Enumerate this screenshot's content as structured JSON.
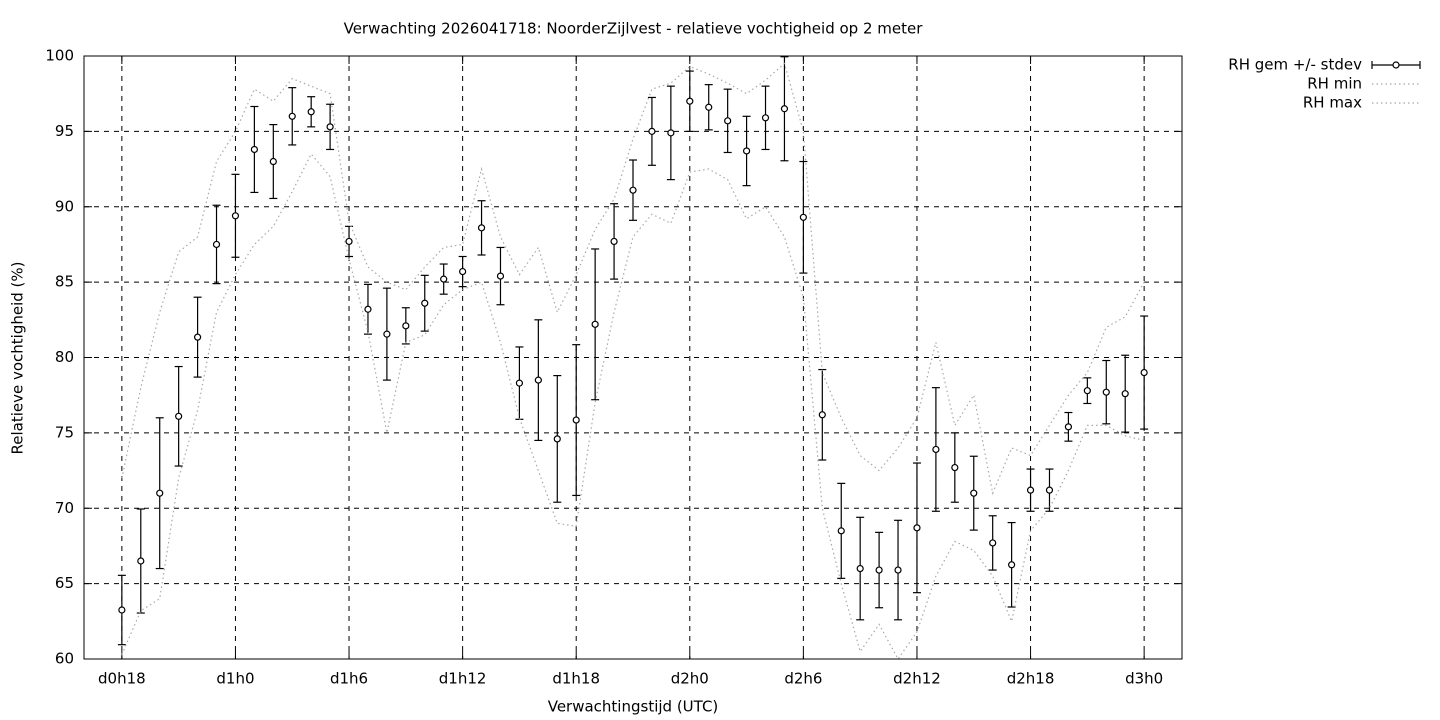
{
  "chart_data": {
    "type": "errorbar-line",
    "title": "Verwachting 2026041718: NoorderZijlvest - relatieve vochtigheid op 2 meter",
    "xlabel": "Verwachtingstijd (UTC)",
    "ylabel": "Relatieve vochtigheid (%)",
    "x": [
      18,
      19,
      20,
      21,
      22,
      23,
      24,
      25,
      26,
      27,
      28,
      29,
      30,
      31,
      32,
      33,
      34,
      35,
      36,
      37,
      38,
      39,
      40,
      41,
      42,
      43,
      44,
      45,
      46,
      47,
      48,
      49,
      50,
      51,
      52,
      53,
      54,
      55,
      56,
      57,
      58,
      59,
      60,
      61,
      62,
      63,
      64,
      65,
      66,
      67,
      68,
      69,
      70,
      71,
      72
    ],
    "xlim": [
      16,
      74
    ],
    "xticks": [
      {
        "value": 18,
        "label": "d0h18"
      },
      {
        "value": 24,
        "label": "d1h0"
      },
      {
        "value": 30,
        "label": "d1h6"
      },
      {
        "value": 36,
        "label": "d1h12"
      },
      {
        "value": 42,
        "label": "d1h18"
      },
      {
        "value": 48,
        "label": "d2h0"
      },
      {
        "value": 54,
        "label": "d2h6"
      },
      {
        "value": 60,
        "label": "d2h12"
      },
      {
        "value": 66,
        "label": "d2h18"
      },
      {
        "value": 72,
        "label": "d3h0"
      }
    ],
    "ylim": [
      60,
      100
    ],
    "yticks": [
      60,
      65,
      70,
      75,
      80,
      85,
      90,
      95,
      100
    ],
    "grid": true,
    "legend": "outside-top-right",
    "series": [
      {
        "name": "RH gem +/- stdev",
        "color": "#000000",
        "style": "errorbars",
        "values": [
          63.25,
          66.5,
          71.0,
          76.1,
          81.35,
          87.5,
          89.4,
          93.8,
          93.0,
          96.0,
          96.3,
          95.3,
          87.7,
          83.2,
          81.55,
          82.1,
          83.6,
          85.2,
          85.7,
          88.6,
          85.4,
          78.3,
          78.5,
          74.6,
          75.85,
          82.2,
          87.7,
          91.1,
          95.0,
          94.9,
          97.0,
          96.6,
          95.7,
          93.7,
          95.9,
          96.5,
          89.3,
          76.2,
          68.5,
          66.0,
          65.9,
          65.9,
          68.7,
          73.9,
          72.7,
          71.0,
          67.7,
          66.25,
          71.2,
          71.2,
          75.4,
          77.8,
          77.7,
          77.6,
          79.0
        ],
        "errors": [
          2.3,
          3.45,
          5.0,
          3.3,
          2.65,
          2.6,
          2.75,
          2.85,
          2.45,
          1.9,
          1.0,
          1.5,
          1.0,
          1.65,
          3.05,
          1.2,
          1.85,
          1.0,
          1.0,
          1.8,
          1.9,
          2.4,
          4.0,
          4.2,
          5.0,
          5.0,
          2.5,
          2.0,
          2.25,
          3.1,
          2.0,
          1.5,
          2.1,
          2.3,
          2.1,
          3.45,
          3.7,
          3.0,
          3.15,
          3.4,
          2.5,
          3.3,
          4.3,
          4.1,
          2.3,
          2.45,
          1.8,
          2.8,
          1.4,
          1.4,
          0.95,
          0.85,
          2.1,
          2.55,
          3.75
        ]
      },
      {
        "name": "RH min",
        "color": "#a8a8a8",
        "style": "dotted",
        "values": [
          60.3,
          63.2,
          64,
          72,
          76.5,
          83,
          85.5,
          87.5,
          88.7,
          91,
          93.5,
          92,
          86.5,
          81.7,
          75,
          81,
          81.5,
          83.5,
          84.5,
          85,
          81,
          76,
          72.5,
          69,
          68.8,
          77,
          83,
          88,
          89.5,
          88.9,
          92.3,
          92.5,
          91.8,
          89.2,
          90,
          88,
          84,
          70,
          65,
          60.5,
          62.3,
          60,
          61.8,
          65.5,
          67.8,
          67.2,
          65.5,
          62.5,
          68.5,
          70,
          72.5,
          75.5,
          75.5,
          74.8,
          74.5
        ]
      },
      {
        "name": "RH max",
        "color": "#a8a8a8",
        "style": "dotted",
        "values": [
          72,
          78,
          83,
          87,
          88,
          93,
          95,
          97.8,
          97,
          98.5,
          98,
          97.5,
          89,
          86,
          85,
          84.5,
          86,
          87.3,
          87.5,
          92.5,
          88,
          85.5,
          87.3,
          83,
          85.5,
          88.5,
          90.5,
          94.5,
          97.8,
          98.2,
          99.3,
          98.8,
          98.2,
          97.5,
          98.4,
          99.5,
          95,
          79,
          76,
          73.5,
          72.5,
          74,
          76,
          81,
          75.5,
          77.5,
          71,
          74,
          73.5,
          75.5,
          77.5,
          79,
          82,
          82.7,
          85
        ]
      }
    ]
  }
}
